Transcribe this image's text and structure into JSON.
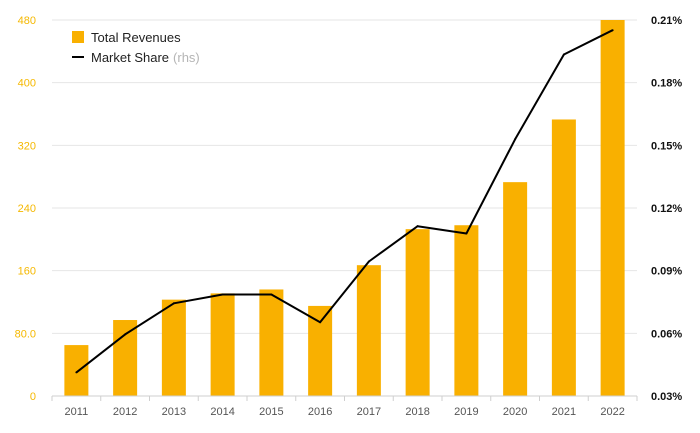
{
  "chart_data": {
    "type": "bar",
    "categories": [
      "2011",
      "2012",
      "2013",
      "2014",
      "2015",
      "2016",
      "2017",
      "2018",
      "2019",
      "2020",
      "2021",
      "2022"
    ],
    "series": [
      {
        "name": "Total Revenues",
        "type": "bar",
        "axis": "left",
        "values": [
          65,
          97,
          123,
          131,
          136,
          115,
          167,
          213,
          218,
          273,
          353,
          480
        ]
      },
      {
        "name": "Market Share",
        "type": "line",
        "axis": "right",
        "values": [
          0.0413,
          0.0595,
          0.0744,
          0.0786,
          0.0786,
          0.0653,
          0.0944,
          0.1113,
          0.1078,
          0.1529,
          0.1935,
          0.2051
        ]
      }
    ],
    "y_left": {
      "ylim": [
        0,
        480
      ],
      "ticks": [
        "0",
        "80.0",
        "160",
        "240",
        "320",
        "400",
        "480"
      ],
      "tick_values": [
        0,
        80,
        160,
        240,
        320,
        400,
        480
      ]
    },
    "y_right": {
      "ylim": [
        0.03,
        0.21
      ],
      "ticks": [
        "0.03%",
        "0.06%",
        "0.09%",
        "0.12%",
        "0.15%",
        "0.18%",
        "0.21%"
      ],
      "tick_values": [
        0.03,
        0.06,
        0.09,
        0.12,
        0.15,
        0.18,
        0.21
      ]
    },
    "legend": {
      "position": "top-left",
      "bar_label": "Total Revenues",
      "line_label": "Market Share",
      "line_suffix": "(rhs)"
    },
    "colors": {
      "bar": "#f9b000",
      "line": "#000000"
    },
    "grid": true
  }
}
